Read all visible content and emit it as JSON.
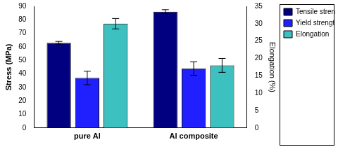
{
  "chart_data": {
    "type": "bar",
    "categories": [
      "pure Al",
      "Al composite"
    ],
    "ylabel": "Stress (MPa)",
    "y2label": "Elongation (%)",
    "ylim": [
      0,
      90
    ],
    "yticks": [
      0,
      10,
      20,
      30,
      40,
      50,
      60,
      70,
      80,
      90
    ],
    "y2lim": [
      0,
      35
    ],
    "y2ticks": [
      0,
      5,
      10,
      15,
      20,
      25,
      30,
      35
    ],
    "grid": false,
    "legend": "right",
    "series": [
      {
        "name": "Tensile strength",
        "color": "#000080",
        "values": [
          63,
          86
        ],
        "errors": [
          1,
          1.5
        ]
      },
      {
        "name": "Yield strength",
        "color": "#2020ff",
        "values": [
          37,
          44
        ],
        "errors": [
          5,
          5
        ]
      },
      {
        "name": "Elongation",
        "color": "#3cc0c0",
        "values": [
          30,
          18
        ],
        "errors": [
          1.5,
          2
        ],
        "axis": "y2"
      }
    ]
  }
}
